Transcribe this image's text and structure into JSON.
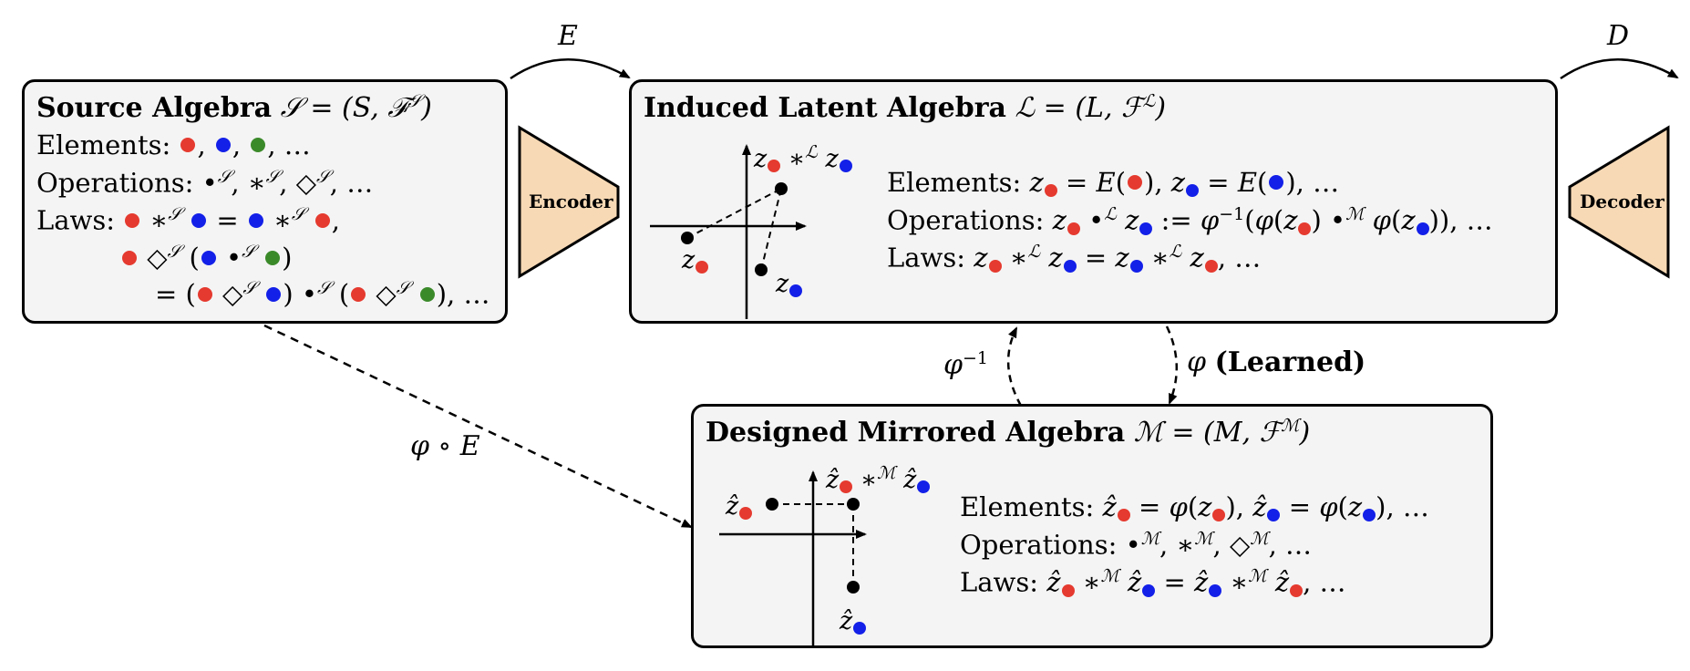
{
  "source": {
    "title_bold": "Source Algebra",
    "title_math": "𝒮 = (S, ℱ",
    "title_sup": "𝒮",
    "title_close": ")",
    "elements_label": "Elements:",
    "operations_label": "Operations:",
    "laws_label": "Laws:",
    "ellipsis": ", …"
  },
  "latent": {
    "title_bold": "Induced Latent Algebra",
    "title_math": "ℒ = (L, ℱ",
    "title_sup": "ℒ",
    "title_close": ")",
    "elements_label": "Elements:",
    "operations_label": "Operations:",
    "laws_label": "Laws:"
  },
  "mirrored": {
    "title_bold": "Designed Mirrored Algebra",
    "title_math": "ℳ = (M, ℱ",
    "title_sup": "ℳ",
    "title_close": ")",
    "elements_label": "Elements:",
    "operations_label": "Operations:",
    "laws_label": "Laws:"
  },
  "encoder_label": "Encoder",
  "decoder_label": "Decoder",
  "arrow_E": "E",
  "arrow_D": "D",
  "arrow_phiE": "φ ∘ E",
  "arrow_phi_inv": "φ",
  "arrow_phi_inv_sup": "−1",
  "arrow_phi": "φ",
  "arrow_phi_learned": "(Learned)",
  "colors": {
    "red": "#e53a2f",
    "blue": "#1320e8",
    "green": "#3b8a2a",
    "box_bg": "#f4f4f4",
    "trapezoid": "#f7d9b5"
  }
}
